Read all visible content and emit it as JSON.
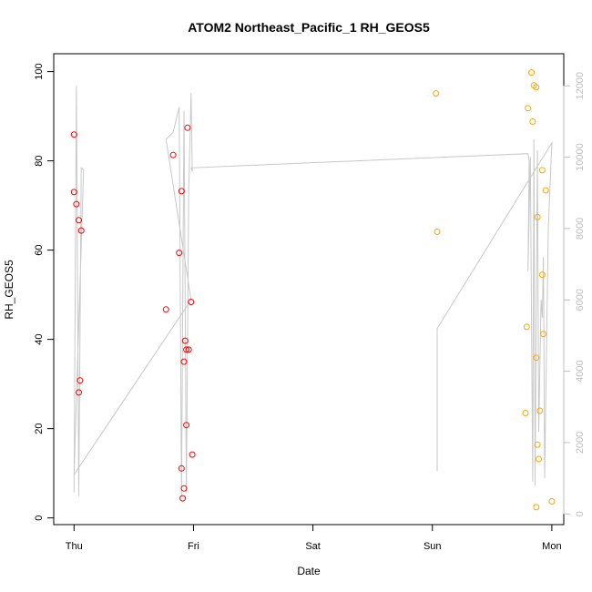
{
  "chart_data": {
    "type": "scatter",
    "title": "ATOM2 Northeast_Pacific_1 RH_GEOS5",
    "xlabel": "Date",
    "ylabel": "RH_GEOS5",
    "x_ticks": [
      "Thu",
      "Fri",
      "Sat",
      "Sun",
      "Mon"
    ],
    "y_ticks": [
      "0",
      "20",
      "40",
      "60",
      "80",
      "100"
    ],
    "y2_ticks": [
      "0",
      "2000",
      "4000",
      "6000",
      "8000",
      "10000",
      "12000"
    ],
    "xlim": [
      -0.17,
      4.1
    ],
    "ylim": [
      -1.5,
      104
    ],
    "y2lim": [
      -300,
      12900
    ],
    "colors": {
      "series1": "#ff0000",
      "series2": "#ffa500",
      "altitude": "#c8c8c8",
      "y2_axis": "#bebebe"
    },
    "series": [
      {
        "color": "#ff0000",
        "points": [
          {
            "x": 0.0,
            "y": 85.9
          },
          {
            "x": 0.0,
            "y": 73.0
          },
          {
            "x": 0.02,
            "y": 70.3
          },
          {
            "x": 0.04,
            "y": 66.7
          },
          {
            "x": 0.06,
            "y": 64.4
          },
          {
            "x": 0.05,
            "y": 30.8
          },
          {
            "x": 0.04,
            "y": 28.1
          },
          {
            "x": 0.77,
            "y": 46.7
          },
          {
            "x": 0.83,
            "y": 81.3
          },
          {
            "x": 0.88,
            "y": 59.4
          },
          {
            "x": 0.9,
            "y": 73.2
          },
          {
            "x": 0.9,
            "y": 11.1
          },
          {
            "x": 0.92,
            "y": 6.6
          },
          {
            "x": 0.91,
            "y": 4.4
          },
          {
            "x": 0.93,
            "y": 39.7
          },
          {
            "x": 0.92,
            "y": 35.0
          },
          {
            "x": 0.94,
            "y": 37.7
          },
          {
            "x": 0.96,
            "y": 37.7
          },
          {
            "x": 0.95,
            "y": 87.4
          },
          {
            "x": 0.94,
            "y": 20.8
          },
          {
            "x": 0.98,
            "y": 48.4
          },
          {
            "x": 0.99,
            "y": 14.2
          }
        ]
      },
      {
        "color": "#ffa500",
        "points": [
          {
            "x": 3.03,
            "y": 95.1
          },
          {
            "x": 3.04,
            "y": 64.1
          },
          {
            "x": 3.83,
            "y": 99.8
          },
          {
            "x": 3.85,
            "y": 96.9
          },
          {
            "x": 3.87,
            "y": 96.5
          },
          {
            "x": 3.8,
            "y": 91.8
          },
          {
            "x": 3.84,
            "y": 88.8
          },
          {
            "x": 3.92,
            "y": 77.9
          },
          {
            "x": 3.95,
            "y": 73.4
          },
          {
            "x": 3.88,
            "y": 67.4
          },
          {
            "x": 3.92,
            "y": 54.5
          },
          {
            "x": 3.79,
            "y": 42.8
          },
          {
            "x": 3.93,
            "y": 41.2
          },
          {
            "x": 3.87,
            "y": 35.9
          },
          {
            "x": 3.9,
            "y": 24.0
          },
          {
            "x": 3.78,
            "y": 23.5
          },
          {
            "x": 3.88,
            "y": 16.4
          },
          {
            "x": 3.89,
            "y": 13.2
          },
          {
            "x": 4.0,
            "y": 3.7
          },
          {
            "x": 3.87,
            "y": 2.4
          }
        ]
      }
    ],
    "altitude_path": [
      [
        0.0,
        600
      ],
      [
        0.02,
        12000
      ],
      [
        0.04,
        500
      ],
      [
        0.06,
        9700
      ],
      [
        0.08,
        9650
      ],
      [
        0.0,
        1100
      ],
      [
        0.98,
        6000
      ],
      [
        0.77,
        10500
      ],
      [
        0.83,
        10700
      ],
      [
        0.88,
        11400
      ],
      [
        0.9,
        500
      ],
      [
        0.92,
        11300
      ],
      [
        0.94,
        600
      ],
      [
        0.96,
        9000
      ],
      [
        0.98,
        11800
      ],
      [
        0.99,
        9600
      ],
      [
        0.98,
        9700
      ],
      [
        3.8,
        10100
      ],
      [
        3.81,
        9900
      ],
      [
        3.8,
        6800
      ],
      [
        3.82,
        10000
      ],
      [
        3.84,
        900
      ],
      [
        3.85,
        10500
      ],
      [
        3.86,
        800
      ],
      [
        3.88,
        10200
      ],
      [
        3.89,
        2300
      ],
      [
        3.91,
        6000
      ],
      [
        3.92,
        5500
      ],
      [
        3.93,
        7200
      ],
      [
        3.94,
        1000
      ],
      [
        3.97,
        8000
      ],
      [
        4.0,
        10400
      ],
      [
        3.04,
        5200
      ],
      [
        3.04,
        1200
      ]
    ]
  }
}
